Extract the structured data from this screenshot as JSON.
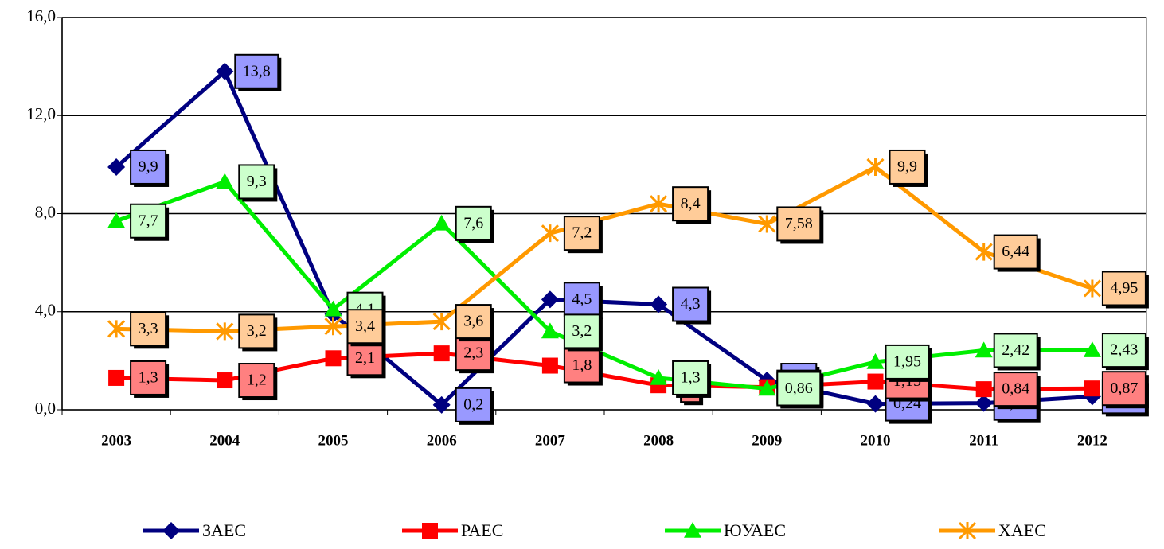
{
  "chart_data": {
    "type": "line",
    "categories": [
      "2003",
      "2004",
      "2005",
      "2006",
      "2007",
      "2008",
      "2009",
      "2010",
      "2011",
      "2012"
    ],
    "series": [
      {
        "name": "ЗАЕС",
        "color": "#000080",
        "label_fill": "#9999ff",
        "marker": "diamond",
        "values": [
          9.9,
          13.8,
          3.9,
          0.2,
          4.5,
          4.3,
          1.2,
          0.24,
          0.27,
          0.54
        ],
        "value_labels": [
          "9,9",
          "13,8",
          "3,9",
          "0,2",
          "4,5",
          "4,3",
          "1,2",
          "0,24",
          "0,27",
          "0,54"
        ]
      },
      {
        "name": "РАЕС",
        "color": "#ff0000",
        "label_fill": "#ff8080",
        "marker": "square",
        "values": [
          1.3,
          1.2,
          2.1,
          2.3,
          1.8,
          1,
          0.92,
          1.15,
          0.84,
          0.87
        ],
        "value_labels": [
          "1,3",
          "1,2",
          "2,1",
          "2,3",
          "1,8",
          "1",
          "0,92",
          "1,15",
          "0,84",
          "0,87"
        ]
      },
      {
        "name": "ЮУАЕС",
        "color": "#00ee00",
        "label_fill": "#ccffcc",
        "marker": "triangle",
        "values": [
          7.7,
          9.3,
          4.1,
          7.6,
          3.2,
          1.3,
          0.86,
          1.95,
          2.42,
          2.43
        ],
        "value_labels": [
          "7,7",
          "9,3",
          "4,1",
          "7,6",
          "3,2",
          "1,3",
          "0,86",
          "1,95",
          "2,42",
          "2,43"
        ]
      },
      {
        "name": "ХАЕС",
        "color": "#ff9900",
        "label_fill": "#ffcc99",
        "marker": "x",
        "values": [
          3.3,
          3.2,
          3.4,
          3.6,
          7.2,
          8.4,
          7.58,
          9.9,
          6.44,
          4.95
        ],
        "value_labels": [
          "3,3",
          "3,2",
          "3,4",
          "3,6",
          "7,2",
          "8,4",
          "7,58",
          "9,9",
          "6,44",
          "4,95"
        ]
      }
    ],
    "ylim": [
      0,
      16
    ],
    "yticks": [
      {
        "value": 0,
        "label": "0,0"
      },
      {
        "value": 4,
        "label": "4,0"
      },
      {
        "value": 8,
        "label": "8,0"
      },
      {
        "value": 12,
        "label": "12,0"
      },
      {
        "value": 16,
        "label": "16,0"
      }
    ],
    "grid": true,
    "legend": "bottom"
  }
}
